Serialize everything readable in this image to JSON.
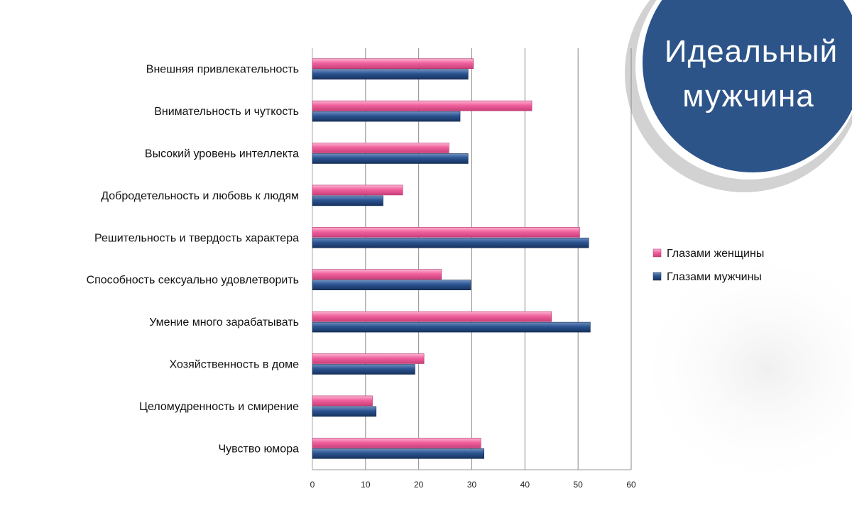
{
  "title": {
    "line1": "Идеальный",
    "line2": "мужчина"
  },
  "colors": {
    "women": "#f0619d",
    "men": "#2b5491",
    "badge": "#2c5489",
    "badge_ring": "#c9c9c9",
    "grid": "#888888"
  },
  "chart_data": {
    "type": "bar",
    "orientation": "horizontal",
    "categories": [
      "Внешняя привлекательность",
      "Внимательность и чуткость",
      "Высокий уровень интеллекта",
      "Добродетельность и любовь к людям",
      "Решительность и твердость характера",
      "Способность сексуально удовлетворить",
      "Умение много зарабатывать",
      "Хозяйственность в доме",
      "Целомудренность и смирение",
      "Чувство юмора"
    ],
    "series": [
      {
        "name": "Глазами женщины",
        "color": "#f0619d",
        "values": [
          30.3,
          41.3,
          25.7,
          17.0,
          50.3,
          24.3,
          45.0,
          21.0,
          11.3,
          31.7
        ]
      },
      {
        "name": "Глазами мужчины",
        "color": "#2b5491",
        "values": [
          29.3,
          27.8,
          29.3,
          13.3,
          52.0,
          29.8,
          52.3,
          19.3,
          12.0,
          32.3
        ]
      }
    ],
    "xlim": [
      0,
      60
    ],
    "xticks": [
      0,
      10,
      20,
      30,
      40,
      50,
      60
    ],
    "grid": true,
    "legend_position": "right"
  }
}
